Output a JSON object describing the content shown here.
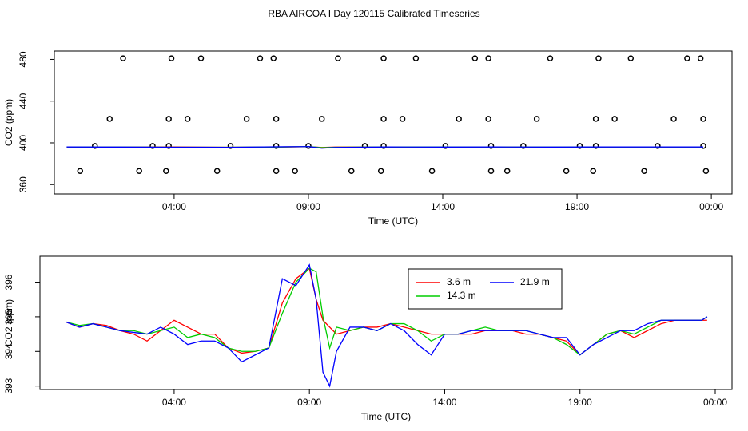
{
  "chart_data": [
    {
      "type": "line",
      "title": "RBA AIRCOA I  Day 120115  Calibrated Timeseries",
      "xlabel": "Time (UTC)",
      "ylabel": "CO2 (ppm)",
      "xlim": [
        -0.46,
        24.77
      ],
      "ylim": [
        351,
        488
      ],
      "xticks": [
        {
          "value": 4,
          "label": "04:00"
        },
        {
          "value": 9,
          "label": "09:00"
        },
        {
          "value": 14,
          "label": "14:00"
        },
        {
          "value": 19,
          "label": "19:00"
        },
        {
          "value": 24,
          "label": "00:00"
        }
      ],
      "yticks": [
        360,
        400,
        440,
        480
      ],
      "x": [
        0,
        2,
        4,
        6,
        8,
        9,
        9.5,
        10,
        12,
        14,
        16,
        18,
        20,
        22,
        23.7
      ],
      "series": [
        {
          "color": "#ff0000",
          "values": [
            396,
            395.9,
            396,
            395.8,
            396,
            396.3,
            395.6,
            395.9,
            396,
            395.9,
            396,
            395.8,
            396,
            396,
            396
          ]
        },
        {
          "color": "#00cd00",
          "values": [
            396,
            395.9,
            395.8,
            395.8,
            396,
            396.4,
            395.4,
            395.8,
            396,
            396,
            396,
            395.9,
            396,
            396,
            396
          ]
        },
        {
          "color": "#0000ff",
          "values": [
            396,
            395.9,
            395.8,
            395.7,
            396.2,
            396.4,
            394.8,
            395.6,
            396,
            395.9,
            396,
            395.9,
            396,
            396,
            396
          ]
        }
      ],
      "points": {
        "color": "#000000",
        "x": [
          2.1,
          3.9,
          5.0,
          7.2,
          7.7,
          10.1,
          11.8,
          13.0,
          15.2,
          15.7,
          18.0,
          19.8,
          21.0,
          23.1,
          23.6,
          1.6,
          3.8,
          4.5,
          6.7,
          7.8,
          9.5,
          11.8,
          12.5,
          14.6,
          15.7,
          17.5,
          19.7,
          20.4,
          22.6,
          23.7,
          1.05,
          3.2,
          3.8,
          6.1,
          7.8,
          9.0,
          11.1,
          11.8,
          14.1,
          15.8,
          17.0,
          19.1,
          19.7,
          22.0,
          23.7,
          0.5,
          2.7,
          3.7,
          5.6,
          7.8,
          8.5,
          10.6,
          11.7,
          13.6,
          15.8,
          16.4,
          18.6,
          19.6,
          21.5,
          23.8
        ],
        "values": [
          481,
          481,
          481,
          481,
          481,
          481,
          481,
          481,
          481,
          481,
          481,
          481,
          481,
          481,
          481,
          423,
          423,
          423,
          423,
          423,
          423,
          423,
          423,
          423,
          423,
          423,
          423,
          423,
          423,
          423,
          397,
          397,
          397,
          397,
          397,
          397,
          397,
          397,
          397,
          397,
          397,
          397,
          397,
          397,
          397,
          373,
          373,
          373,
          373,
          373,
          373,
          373,
          373,
          373,
          373,
          373,
          373,
          373,
          373,
          373
        ]
      }
    },
    {
      "type": "line",
      "xlabel": "Time (UTC)",
      "ylabel": "CO2 (ppm)",
      "xlim": [
        -0.96,
        24.62
      ],
      "ylim": [
        392.9,
        396.75
      ],
      "xticks": [
        {
          "value": 4,
          "label": "04:00"
        },
        {
          "value": 9,
          "label": "09:00"
        },
        {
          "value": 14,
          "label": "14:00"
        },
        {
          "value": 19,
          "label": "19:00"
        },
        {
          "value": 24,
          "label": "00:00"
        }
      ],
      "yticks": [
        393,
        394,
        395,
        396
      ],
      "legend": "top",
      "x": [
        0,
        0.5,
        1,
        1.5,
        2,
        2.5,
        3,
        3.5,
        4,
        4.5,
        5,
        5.5,
        6,
        6.5,
        7,
        7.5,
        8,
        8.5,
        9,
        9.25,
        9.5,
        9.75,
        10,
        10.5,
        11,
        11.5,
        12,
        12.5,
        13,
        13.5,
        14,
        14.5,
        15,
        15.5,
        16,
        16.5,
        17,
        17.5,
        18,
        18.5,
        19,
        19.5,
        20,
        20.5,
        21,
        21.5,
        22,
        22.5,
        23,
        23.5,
        23.7
      ],
      "series": [
        {
          "name": "3.6 m",
          "color": "#ff0000",
          "values": [
            394.85,
            394.7,
            394.8,
            394.75,
            394.6,
            394.5,
            394.3,
            394.6,
            394.9,
            394.7,
            394.5,
            394.5,
            394.1,
            393.95,
            394.0,
            394.1,
            395.4,
            396.1,
            396.4,
            395.5,
            394.9,
            394.7,
            394.5,
            394.6,
            394.7,
            394.7,
            394.8,
            394.7,
            394.6,
            394.5,
            394.5,
            394.5,
            394.5,
            394.6,
            394.6,
            394.6,
            394.5,
            394.5,
            394.4,
            394.3,
            393.9,
            394.2,
            394.5,
            394.6,
            394.4,
            394.6,
            394.8,
            394.9,
            394.9,
            394.9,
            394.9
          ]
        },
        {
          "name": "14.3 m",
          "color": "#00cd00",
          "values": [
            394.85,
            394.75,
            394.8,
            394.7,
            394.6,
            394.6,
            394.5,
            394.6,
            394.7,
            394.4,
            394.5,
            394.4,
            394.1,
            394.0,
            394.0,
            394.1,
            395.1,
            396.0,
            396.4,
            396.3,
            395.0,
            394.1,
            394.7,
            394.6,
            394.7,
            394.6,
            394.8,
            394.8,
            394.6,
            394.3,
            394.5,
            394.5,
            394.6,
            394.7,
            394.6,
            394.6,
            394.6,
            394.5,
            394.4,
            394.2,
            393.9,
            394.2,
            394.5,
            394.6,
            394.5,
            394.7,
            394.9,
            394.9,
            394.9,
            394.9,
            395.0
          ]
        },
        {
          "name": "21.9 m",
          "color": "#0000ff",
          "values": [
            394.85,
            394.7,
            394.8,
            394.7,
            394.6,
            394.55,
            394.5,
            394.7,
            394.5,
            394.2,
            394.3,
            394.3,
            394.1,
            393.7,
            393.9,
            394.1,
            396.1,
            395.9,
            396.5,
            395.5,
            393.4,
            393.0,
            394.0,
            394.7,
            394.7,
            394.6,
            394.8,
            394.6,
            394.2,
            393.9,
            394.5,
            394.5,
            394.6,
            394.6,
            394.6,
            394.6,
            394.6,
            394.5,
            394.4,
            394.4,
            393.9,
            394.2,
            394.4,
            394.6,
            394.6,
            394.8,
            394.9,
            394.9,
            394.9,
            394.9,
            395.0
          ]
        }
      ]
    }
  ]
}
